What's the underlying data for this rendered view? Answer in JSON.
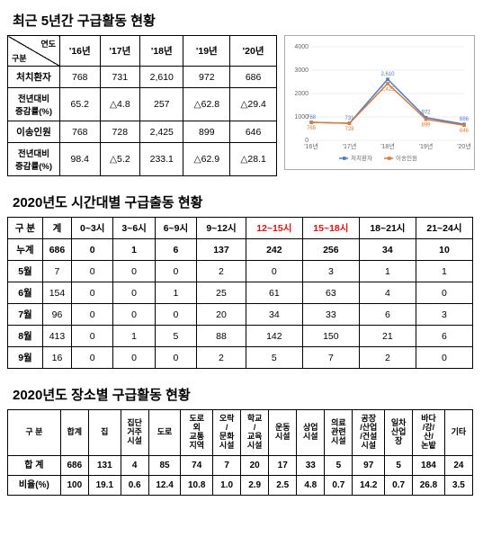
{
  "section1": {
    "title": "최근 5년간 구급활동 현황",
    "corner_top": "연도",
    "corner_bottom": "구분",
    "years": [
      "'16년",
      "'17년",
      "'18년",
      "'19년",
      "'20년"
    ],
    "rows": [
      {
        "label": "처치환자",
        "vals": [
          "768",
          "731",
          "2,610",
          "972",
          "686"
        ]
      },
      {
        "label": "전년대비\n증감률(%)",
        "vals": [
          "65.2",
          "△4.8",
          "257",
          "△62.8",
          "△29.4"
        ]
      },
      {
        "label": "이송인원",
        "vals": [
          "768",
          "728",
          "2,425",
          "899",
          "646"
        ]
      },
      {
        "label": "전년대비\n증감률(%)",
        "vals": [
          "98.4",
          "△5.2",
          "233.1",
          "△62.9",
          "△28.1"
        ]
      }
    ],
    "chart": {
      "ylim": [
        0,
        4000
      ],
      "ytick_step": 1000,
      "xlabels": [
        "'16년",
        "'17년",
        "'18년",
        "'19년",
        "'20년"
      ],
      "series": [
        {
          "name": "처치환자",
          "color": "#4e7ac7",
          "values": [
            768,
            731,
            2610,
            972,
            686
          ]
        },
        {
          "name": "이송인원",
          "color": "#d87a3a",
          "values": [
            768,
            728,
            2425,
            899,
            646
          ]
        }
      ],
      "grid_color": "#dddddd",
      "bg": "#ffffff",
      "label_fontsize": 7,
      "point_labels": [
        {
          "series": 0,
          "i": 0,
          "text": "768"
        },
        {
          "series": 0,
          "i": 1,
          "text": "731"
        },
        {
          "series": 0,
          "i": 2,
          "text": "2,610"
        },
        {
          "series": 0,
          "i": 3,
          "text": "972"
        },
        {
          "series": 0,
          "i": 4,
          "text": "686"
        },
        {
          "series": 1,
          "i": 0,
          "text": "768"
        },
        {
          "series": 1,
          "i": 1,
          "text": "728"
        },
        {
          "series": 1,
          "i": 2,
          "text": "2,425"
        },
        {
          "series": 1,
          "i": 3,
          "text": "899"
        },
        {
          "series": 1,
          "i": 4,
          "text": "646"
        }
      ]
    }
  },
  "section2": {
    "title": "2020년도 시간대별 구급출동 현황",
    "cols": [
      "구 분",
      "계",
      "0~3시",
      "3~6시",
      "6~9시",
      "9~12시",
      "12~15시",
      "15~18시",
      "18~21시",
      "21~24시"
    ],
    "red_cols": [
      6,
      7
    ],
    "rows": [
      [
        "누계",
        "686",
        "0",
        "1",
        "6",
        "137",
        "242",
        "256",
        "34",
        "10"
      ],
      [
        "5월",
        "7",
        "0",
        "0",
        "0",
        "2",
        "0",
        "3",
        "1",
        "1"
      ],
      [
        "6월",
        "154",
        "0",
        "0",
        "1",
        "25",
        "61",
        "63",
        "4",
        "0"
      ],
      [
        "7월",
        "96",
        "0",
        "0",
        "0",
        "20",
        "34",
        "33",
        "6",
        "3"
      ],
      [
        "8월",
        "413",
        "0",
        "1",
        "5",
        "88",
        "142",
        "150",
        "21",
        "6"
      ],
      [
        "9월",
        "16",
        "0",
        "0",
        "0",
        "2",
        "5",
        "7",
        "2",
        "0"
      ]
    ]
  },
  "section3": {
    "title": "2020년도 장소별 구급활동 현황",
    "cols": [
      "구 분",
      "합계",
      "집",
      "집단\n거주\n시설",
      "도로",
      "도로\n외\n교통\n지역",
      "오락\n/\n문화\n시설",
      "학교\n/\n교육\n시설",
      "운동\n시설",
      "상업\n시설",
      "의료\n관련\n시설",
      "공장\n/산업\n/건설\n시설",
      "일차\n산업\n장",
      "바다\n/강/\n산/\n논밭",
      "기타"
    ],
    "rows": [
      [
        "합 계",
        "686",
        "131",
        "4",
        "85",
        "74",
        "7",
        "20",
        "17",
        "33",
        "5",
        "97",
        "5",
        "184",
        "24"
      ],
      [
        "비율(%)",
        "100",
        "19.1",
        "0.6",
        "12.4",
        "10.8",
        "1.0",
        "2.9",
        "2.5",
        "4.8",
        "0.7",
        "14.2",
        "0.7",
        "26.8",
        "3.5"
      ]
    ]
  }
}
